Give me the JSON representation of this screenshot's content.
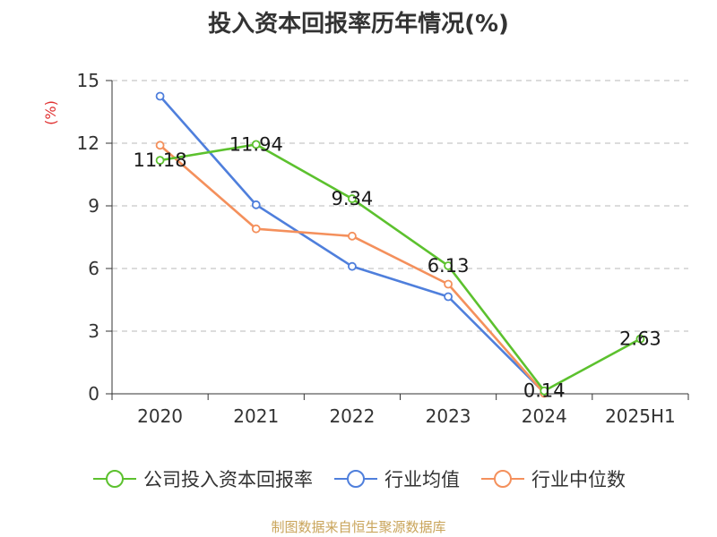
{
  "chart_data": {
    "type": "line",
    "title": "投入资本回报率历年情况(%)",
    "ylabel": "(%)",
    "ylim": [
      0,
      15
    ],
    "yticks": [
      0,
      3,
      6,
      9,
      12,
      15
    ],
    "categories": [
      "2020",
      "2021",
      "2022",
      "2023",
      "2024",
      "2025H1"
    ],
    "grid": true,
    "legend_position": "bottom",
    "series": [
      {
        "name": "公司投入资本回报率",
        "color": "#5cc12e",
        "values": [
          11.18,
          11.94,
          9.34,
          6.13,
          0.14,
          2.63
        ],
        "labels": [
          "11.18",
          "11.94",
          "9.34",
          "6.13",
          "0.14",
          "2.63"
        ]
      },
      {
        "name": "行业均值",
        "color": "#4f7fdc",
        "values": [
          14.25,
          9.05,
          6.1,
          4.65,
          0.05,
          null
        ]
      },
      {
        "name": "行业中位数",
        "color": "#f4905c",
        "values": [
          11.9,
          7.9,
          7.55,
          5.25,
          0.02,
          null
        ]
      }
    ]
  },
  "source_note": "制图数据来自恒生聚源数据库"
}
